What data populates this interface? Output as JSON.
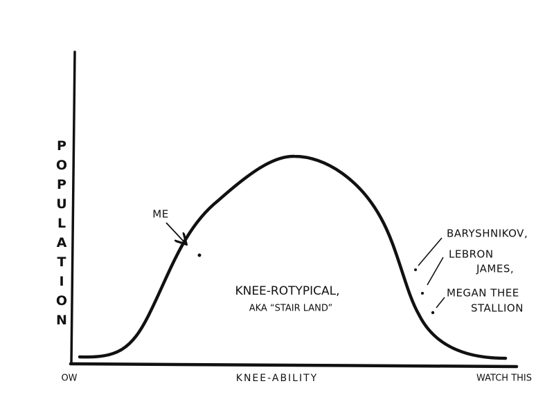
{
  "axes": {
    "y_label": "POPULATION",
    "x_label": "KNEE-ABILITY",
    "x_min_label": "OW",
    "x_max_label": "WATCH THIS"
  },
  "annotations": {
    "me": "ME",
    "center": [
      "KNEE-ROTYPICAL,",
      "AKA “STAIR LAND”"
    ],
    "people": [
      [
        "BARYSHNIKOV,"
      ],
      [
        "LEBRON",
        "JAMES,"
      ],
      [
        "MEGAN THEE",
        "STALLION"
      ]
    ]
  }
}
